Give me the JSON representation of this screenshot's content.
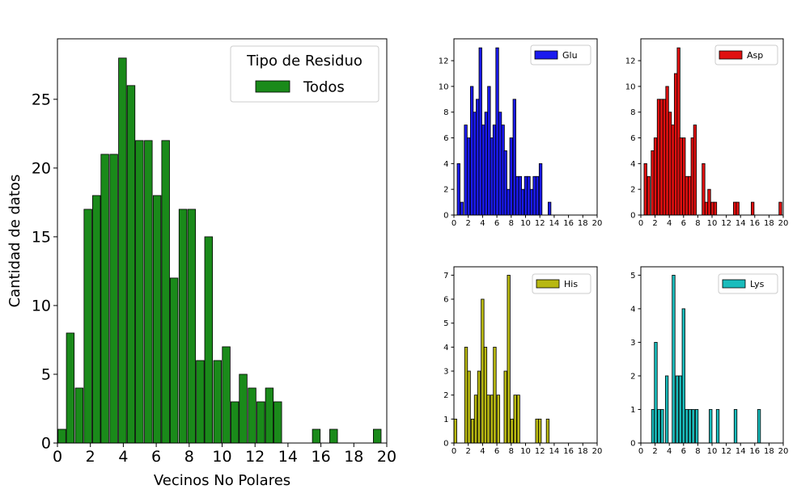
{
  "chart_data": [
    {
      "type": "bar",
      "xlabel": "Vecinos No Polares",
      "ylabel": "Cantidad de datos",
      "legend_title": "Tipo de Residuo",
      "legend_position": "top-right",
      "xlim": [
        0,
        20
      ],
      "ylim": [
        0,
        29.4
      ],
      "xticks": [
        0,
        2,
        4,
        6,
        8,
        10,
        12,
        14,
        16,
        18,
        20
      ],
      "yticks": [
        0,
        5,
        10,
        15,
        20,
        25
      ],
      "color": "#1a8a1a",
      "series": [
        {
          "name": "Todos",
          "bins": [
            0.27,
            0.78,
            1.32,
            1.85,
            2.37,
            2.88,
            3.42,
            3.95,
            4.47,
            4.98,
            5.52,
            6.05,
            6.57,
            7.08,
            7.62,
            8.15,
            8.67,
            9.18,
            9.72,
            10.25,
            10.77,
            11.28,
            11.82,
            12.35,
            12.87,
            13.38,
            15.72,
            16.77,
            19.42
          ],
          "values": [
            1,
            8,
            4,
            17,
            18,
            21,
            21,
            28,
            26,
            22,
            22,
            18,
            22,
            12,
            17,
            17,
            6,
            15,
            6,
            7,
            3,
            5,
            4,
            3,
            4,
            3,
            1,
            1,
            1
          ]
        }
      ]
    },
    {
      "type": "bar",
      "legend_position": "top-right",
      "xlim": [
        0,
        20
      ],
      "ylim": [
        0,
        13.7
      ],
      "xticks": [
        0,
        2,
        4,
        6,
        8,
        10,
        12,
        14,
        16,
        18,
        20
      ],
      "yticks": [
        0,
        2,
        4,
        6,
        8,
        10,
        12
      ],
      "color": "#1a1aee",
      "series": [
        {
          "name": "Glu",
          "bins": [
            0.65,
            1.1,
            1.65,
            2.05,
            2.5,
            2.9,
            3.3,
            3.7,
            4.1,
            4.5,
            4.9,
            5.3,
            5.65,
            6.05,
            6.45,
            6.85,
            7.2,
            7.6,
            8.0,
            8.45,
            8.85,
            9.25,
            9.6,
            10.05,
            10.45,
            10.85,
            11.25,
            11.65,
            12.1,
            13.35
          ],
          "values": [
            4,
            1,
            7,
            6,
            10,
            8,
            9,
            13,
            7,
            8,
            10,
            6,
            7,
            13,
            8,
            7,
            5,
            2,
            6,
            9,
            3,
            3,
            2,
            3,
            3,
            2,
            3,
            3,
            4,
            1
          ]
        }
      ]
    },
    {
      "type": "bar",
      "legend_position": "top-right",
      "xlim": [
        0,
        20
      ],
      "ylim": [
        0,
        13.7
      ],
      "xticks": [
        0,
        2,
        4,
        6,
        8,
        10,
        12,
        14,
        16,
        18,
        20
      ],
      "yticks": [
        0,
        2,
        4,
        6,
        8,
        10,
        12
      ],
      "color": "#e01010",
      "series": [
        {
          "name": "Asp",
          "bins": [
            0.65,
            1.1,
            1.65,
            2.05,
            2.5,
            2.9,
            3.3,
            3.7,
            4.1,
            4.5,
            4.9,
            5.3,
            5.65,
            6.05,
            6.45,
            6.85,
            7.25,
            7.6,
            8.8,
            9.2,
            9.6,
            10.05,
            10.45,
            13.2,
            13.6,
            15.7,
            19.6
          ],
          "values": [
            4,
            3,
            5,
            6,
            9,
            9,
            9,
            10,
            8,
            7,
            11,
            13,
            6,
            6,
            3,
            3,
            6,
            7,
            4,
            1,
            2,
            1,
            1,
            1,
            1,
            1,
            1
          ]
        }
      ]
    },
    {
      "type": "bar",
      "legend_position": "top-right",
      "xlim": [
        0,
        20
      ],
      "ylim": [
        0,
        7.35
      ],
      "xticks": [
        0,
        2,
        4,
        6,
        8,
        10,
        12,
        14,
        16,
        18,
        20
      ],
      "yticks": [
        0,
        1,
        2,
        3,
        4,
        5,
        6,
        7
      ],
      "color": "#b8b812",
      "series": [
        {
          "name": "His",
          "bins": [
            0.2,
            1.7,
            2.1,
            2.6,
            3.05,
            3.5,
            4.0,
            4.4,
            4.8,
            5.3,
            5.7,
            6.2,
            7.2,
            7.65,
            8.1,
            8.55,
            9.0,
            11.6,
            12.0,
            13.1
          ],
          "values": [
            1,
            4,
            3,
            1,
            2,
            3,
            6,
            4,
            2,
            2,
            4,
            2,
            3,
            7,
            1,
            2,
            2,
            1,
            1,
            1
          ]
        }
      ]
    },
    {
      "type": "bar",
      "legend_position": "top-right",
      "xlim": [
        0,
        20
      ],
      "ylim": [
        0,
        5.25
      ],
      "xticks": [
        0,
        2,
        4,
        6,
        8,
        10,
        12,
        14,
        16,
        18,
        20
      ],
      "yticks": [
        0,
        1,
        2,
        3,
        4,
        5
      ],
      "color": "#1abcbc",
      "series": [
        {
          "name": "Lys",
          "bins": [
            1.7,
            2.1,
            2.55,
            3.0,
            3.65,
            4.6,
            5.1,
            5.55,
            6.0,
            6.45,
            6.9,
            7.35,
            7.85,
            9.8,
            10.8,
            13.3,
            16.6
          ],
          "values": [
            1,
            3,
            1,
            1,
            2,
            5,
            2,
            2,
            4,
            1,
            1,
            1,
            1,
            1,
            1,
            1,
            1
          ]
        }
      ]
    }
  ]
}
